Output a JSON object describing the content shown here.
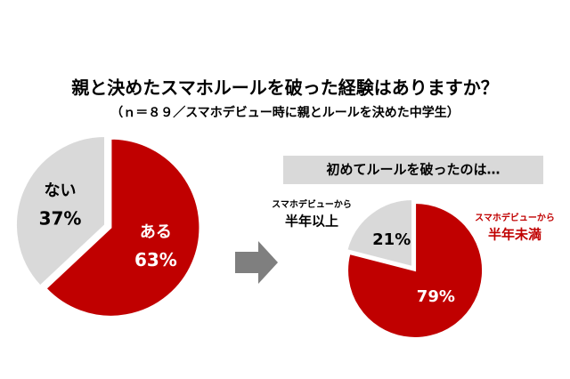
{
  "chart_data": [
    {
      "type": "pie",
      "title": "親と決めたスマホルールを破った経験はありますか？",
      "subtitle": "（ｎ＝８９／スマホデビュー時に親とルールを決めた中学生）",
      "categories": [
        "ある",
        "ない"
      ],
      "values": [
        63,
        37
      ],
      "value_labels": [
        "63%",
        "37%"
      ],
      "colors": [
        "#c00000",
        "#d9d9d9"
      ]
    },
    {
      "type": "pie",
      "title": "初めてルールを破ったのは…",
      "categories": [
        "半年未満",
        "半年以上"
      ],
      "category_prefixes": [
        "スマホデビューから",
        "スマホデビューから"
      ],
      "values": [
        79,
        21
      ],
      "value_labels": [
        "79%",
        "21%"
      ],
      "colors": [
        "#c00000",
        "#d9d9d9"
      ]
    }
  ]
}
